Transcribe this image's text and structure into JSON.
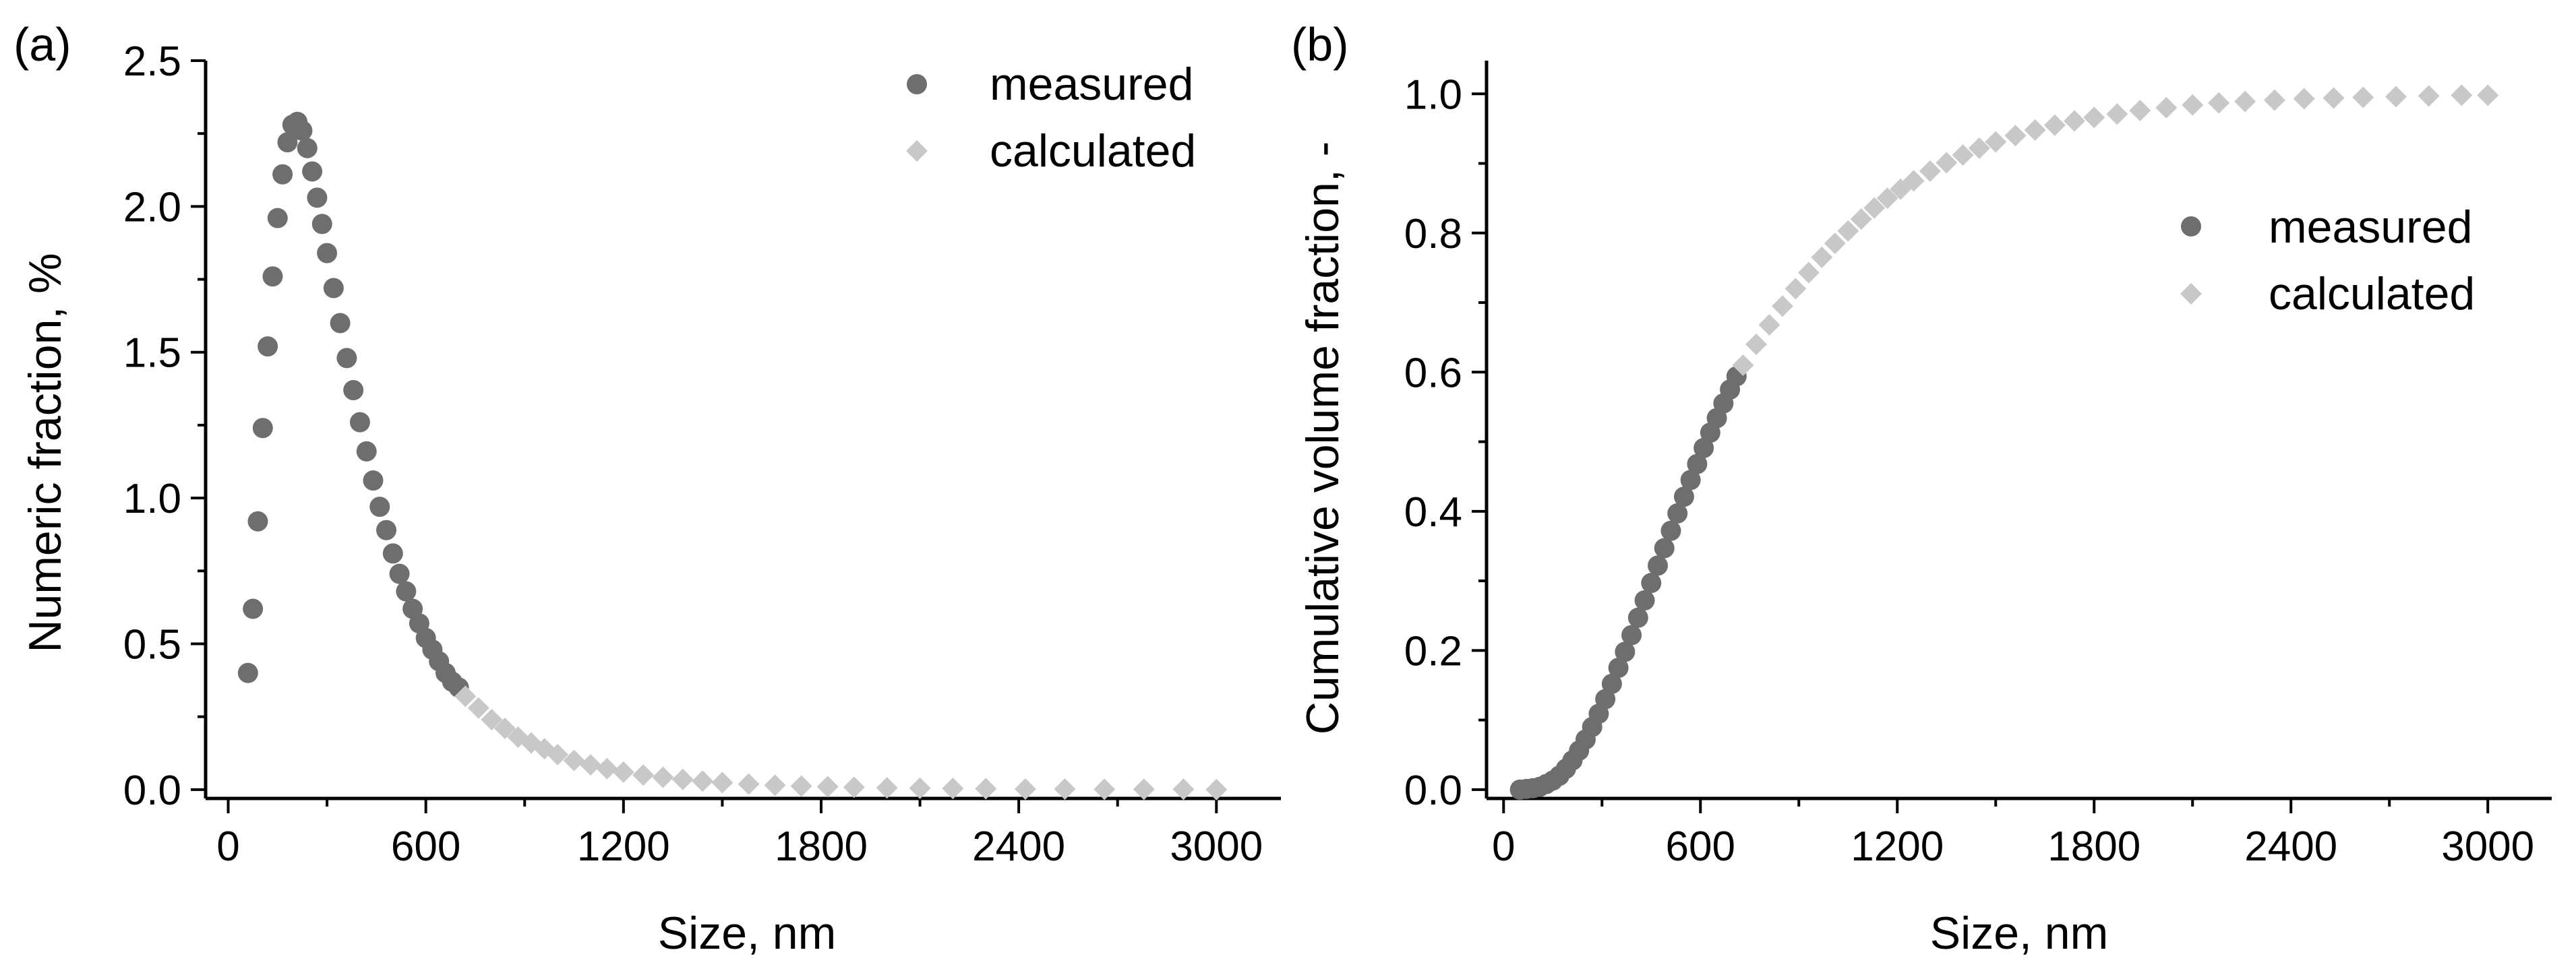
{
  "chart_data": [
    {
      "panel": "(a)",
      "type": "scatter",
      "xlabel": "Size, nm",
      "ylabel": "Numeric fraction, %",
      "xlim": [
        0,
        3000
      ],
      "ylim": [
        0,
        2.5
      ],
      "xticks": [
        "0",
        "600",
        "1200",
        "1800",
        "2400",
        "3000"
      ],
      "yticks": [
        "0.0",
        "0.5",
        "1.0",
        "1.5",
        "2.0",
        "2.5"
      ],
      "legend_position": "top-right",
      "series": [
        {
          "name": "measured",
          "marker": "circle",
          "color": "#6e6e6e",
          "x": [
            60,
            75,
            90,
            105,
            120,
            135,
            150,
            165,
            180,
            195,
            210,
            225,
            240,
            255,
            270,
            285,
            300,
            320,
            340,
            360,
            380,
            400,
            420,
            440,
            460,
            480,
            500,
            520,
            540,
            560,
            580,
            600,
            620,
            640,
            660,
            680,
            700
          ],
          "y": [
            0.4,
            0.62,
            0.92,
            1.24,
            1.52,
            1.76,
            1.96,
            2.11,
            2.22,
            2.28,
            2.29,
            2.26,
            2.2,
            2.12,
            2.03,
            1.94,
            1.84,
            1.72,
            1.6,
            1.48,
            1.37,
            1.26,
            1.16,
            1.06,
            0.97,
            0.89,
            0.81,
            0.74,
            0.68,
            0.62,
            0.57,
            0.52,
            0.48,
            0.44,
            0.4,
            0.37,
            0.35
          ]
        },
        {
          "name": "calculated",
          "marker": "diamond",
          "color": "#c8c8c8",
          "x": [
            720,
            760,
            800,
            840,
            880,
            920,
            960,
            1000,
            1050,
            1100,
            1150,
            1200,
            1260,
            1320,
            1380,
            1440,
            1500,
            1580,
            1660,
            1740,
            1820,
            1900,
            2000,
            2100,
            2200,
            2300,
            2420,
            2540,
            2660,
            2780,
            2900,
            3000
          ],
          "y": [
            0.32,
            0.28,
            0.24,
            0.21,
            0.18,
            0.16,
            0.14,
            0.12,
            0.1,
            0.085,
            0.072,
            0.06,
            0.05,
            0.042,
            0.035,
            0.029,
            0.024,
            0.019,
            0.015,
            0.012,
            0.01,
            0.008,
            0.006,
            0.005,
            0.004,
            0.003,
            0.002,
            0.002,
            0.001,
            0.001,
            0.001,
            0.0
          ]
        }
      ]
    },
    {
      "panel": "(b)",
      "type": "scatter",
      "xlabel": "Size, nm",
      "ylabel": "Cumulative volume fraction, -",
      "xlim": [
        0,
        3000
      ],
      "ylim": [
        0,
        1.0
      ],
      "xticks": [
        "0",
        "600",
        "1200",
        "1800",
        "2400",
        "3000"
      ],
      "yticks": [
        "0.0",
        "0.2",
        "0.4",
        "0.6",
        "0.8",
        "1.0"
      ],
      "legend_position": "center-right",
      "series": [
        {
          "name": "measured",
          "marker": "circle",
          "color": "#6e6e6e",
          "x": [
            50,
            70,
            90,
            110,
            130,
            150,
            170,
            190,
            210,
            230,
            250,
            270,
            290,
            310,
            330,
            350,
            370,
            390,
            410,
            430,
            450,
            470,
            490,
            510,
            530,
            550,
            570,
            590,
            610,
            630,
            650,
            670,
            690,
            710
          ],
          "y": [
            0.0,
            0.001,
            0.002,
            0.004,
            0.008,
            0.013,
            0.02,
            0.03,
            0.042,
            0.056,
            0.072,
            0.09,
            0.109,
            0.13,
            0.152,
            0.175,
            0.198,
            0.222,
            0.247,
            0.272,
            0.297,
            0.322,
            0.347,
            0.372,
            0.397,
            0.421,
            0.445,
            0.468,
            0.491,
            0.513,
            0.534,
            0.555,
            0.575,
            0.594
          ]
        },
        {
          "name": "calculated",
          "marker": "diamond",
          "color": "#c8c8c8",
          "x": [
            730,
            770,
            810,
            850,
            890,
            930,
            970,
            1010,
            1050,
            1090,
            1130,
            1170,
            1210,
            1250,
            1300,
            1350,
            1400,
            1450,
            1500,
            1560,
            1620,
            1680,
            1740,
            1800,
            1870,
            1940,
            2020,
            2100,
            2180,
            2260,
            2350,
            2440,
            2530,
            2620,
            2720,
            2820,
            2920,
            3000
          ],
          "y": [
            0.61,
            0.64,
            0.668,
            0.695,
            0.72,
            0.743,
            0.765,
            0.785,
            0.803,
            0.82,
            0.836,
            0.85,
            0.863,
            0.875,
            0.889,
            0.901,
            0.912,
            0.922,
            0.931,
            0.94,
            0.948,
            0.955,
            0.961,
            0.966,
            0.971,
            0.976,
            0.98,
            0.984,
            0.987,
            0.989,
            0.991,
            0.993,
            0.994,
            0.995,
            0.996,
            0.997,
            0.998,
            0.998
          ]
        }
      ]
    }
  ]
}
